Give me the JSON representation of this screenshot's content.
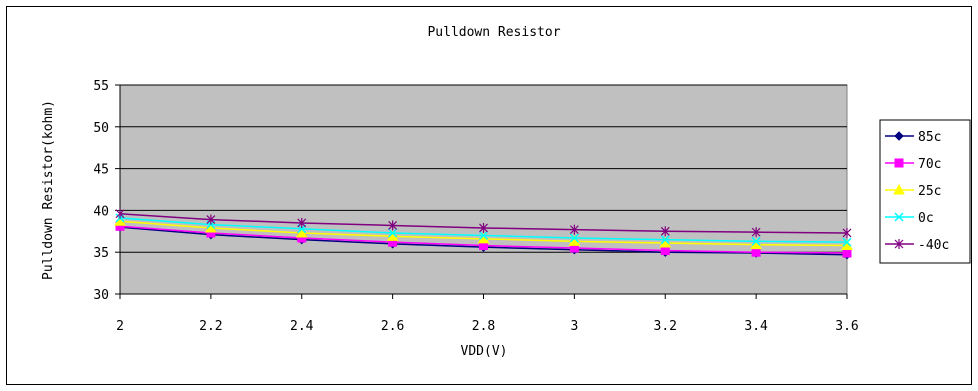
{
  "chart_data": {
    "type": "line",
    "title": "Pulldown Resistor",
    "xlabel": "VDD(V)",
    "ylabel": "Pulldown Resistor(kohm)",
    "x": [
      "2",
      "2.2",
      "2.4",
      "2.6",
      "2.8",
      "3",
      "3.2",
      "3.4",
      "3.6"
    ],
    "ylim": [
      30,
      55
    ],
    "yticks": [
      30,
      35,
      40,
      45,
      50,
      55
    ],
    "grid": true,
    "legend_position": "right",
    "series": [
      {
        "name": "85c",
        "color": "#000080",
        "marker": "diamond",
        "values": [
          38.0,
          37.1,
          36.5,
          36.0,
          35.6,
          35.3,
          35.0,
          34.9,
          34.7
        ]
      },
      {
        "name": "70c",
        "color": "#ff00ff",
        "marker": "square",
        "values": [
          38.1,
          37.3,
          36.7,
          36.2,
          35.8,
          35.5,
          35.2,
          35.0,
          34.9
        ]
      },
      {
        "name": "25c",
        "color": "#ffff00",
        "marker": "triangle",
        "values": [
          38.7,
          37.9,
          37.3,
          36.9,
          36.6,
          36.3,
          36.1,
          35.9,
          35.8
        ]
      },
      {
        "name": "0c",
        "color": "#00ffff",
        "marker": "x",
        "values": [
          39.1,
          38.3,
          37.8,
          37.3,
          37.0,
          36.7,
          36.5,
          36.3,
          36.2
        ]
      },
      {
        "name": "-40c",
        "color": "#800080",
        "marker": "star",
        "values": [
          39.6,
          38.9,
          38.5,
          38.2,
          37.9,
          37.7,
          37.5,
          37.4,
          37.3
        ]
      }
    ]
  }
}
